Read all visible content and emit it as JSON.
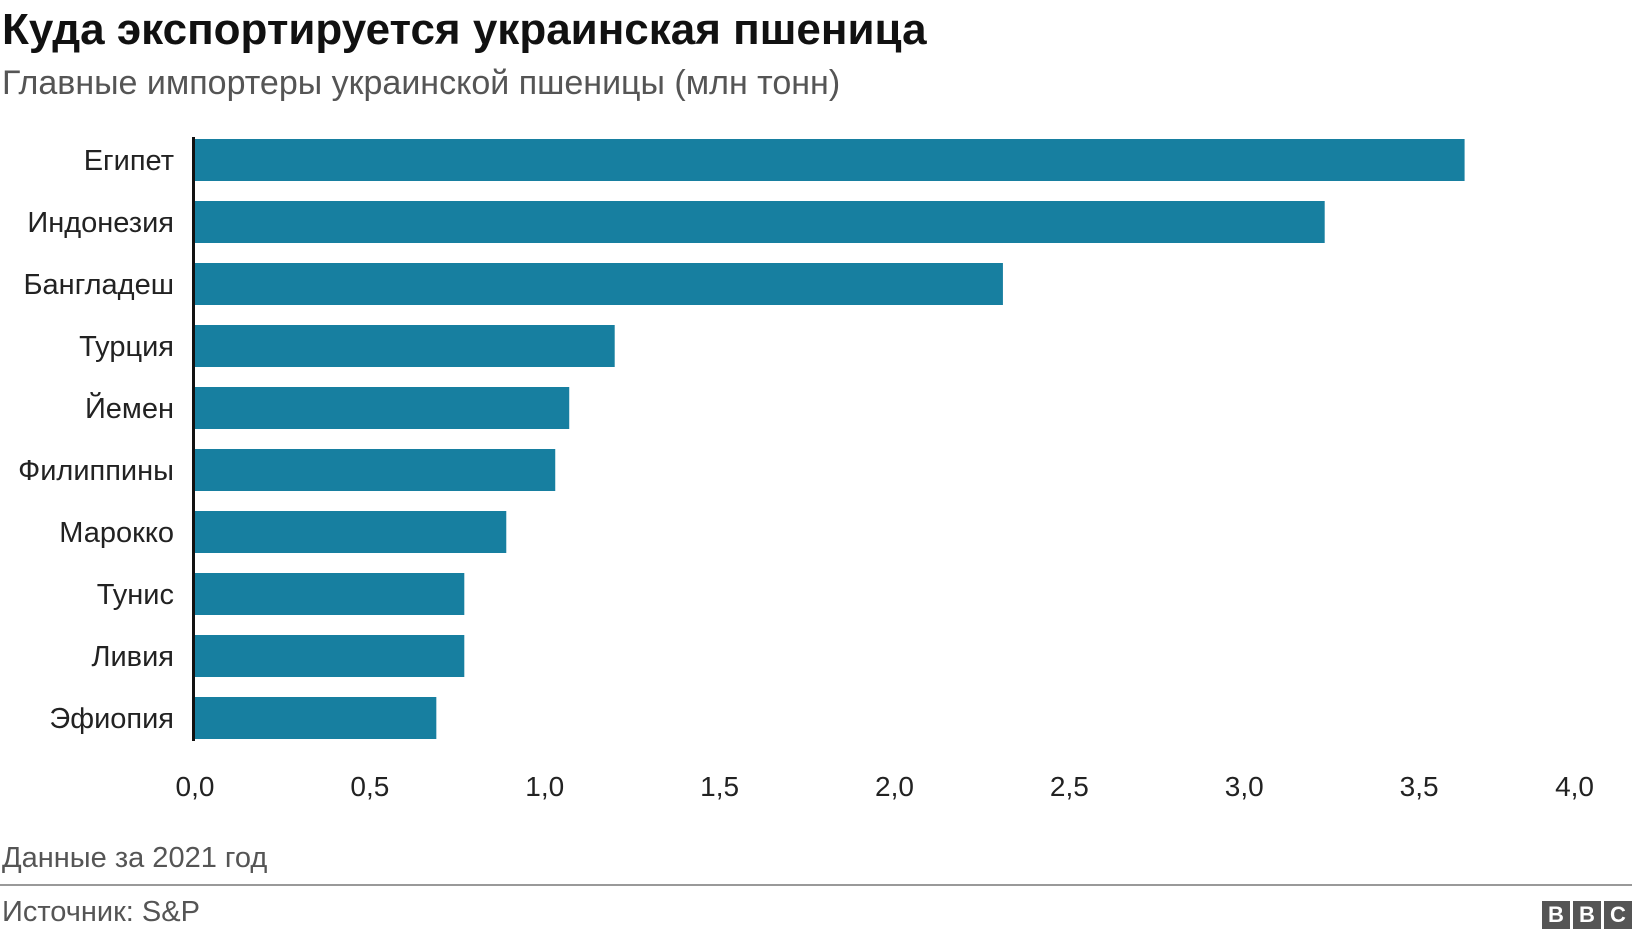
{
  "header": {
    "title": "Куда экспортируется украинская пшеница",
    "subtitle": "Главные импортеры украинской пшеницы (млн тонн)"
  },
  "footer": {
    "note": "Данные за 2021 год",
    "source": "Источник: S&P",
    "logo_letters": [
      "B",
      "B",
      "C"
    ]
  },
  "colors": {
    "bar": "#177fa0",
    "axis": "#111111"
  },
  "chart_data": {
    "type": "bar",
    "orientation": "horizontal",
    "title": "Куда экспортируется украинская пшеница",
    "subtitle": "Главные импортеры украинской пшеницы (млн тонн)",
    "categories": [
      "Египет",
      "Индонезия",
      "Бангладеш",
      "Турция",
      "Йемен",
      "Филиппины",
      "Марокко",
      "Тунис",
      "Ливия",
      "Эфиопия"
    ],
    "values": [
      3.63,
      3.23,
      2.31,
      1.2,
      1.07,
      1.03,
      0.89,
      0.77,
      0.77,
      0.69
    ],
    "xlim": [
      0,
      4
    ],
    "ticks": [
      0,
      0.5,
      1,
      1.5,
      2,
      2.5,
      3,
      3.5,
      4
    ],
    "tick_labels": [
      "0,0",
      "0,5",
      "1,0",
      "1,5",
      "2,0",
      "2,5",
      "3,0",
      "3,5",
      "4,0"
    ],
    "grid": false,
    "legend": "none"
  }
}
